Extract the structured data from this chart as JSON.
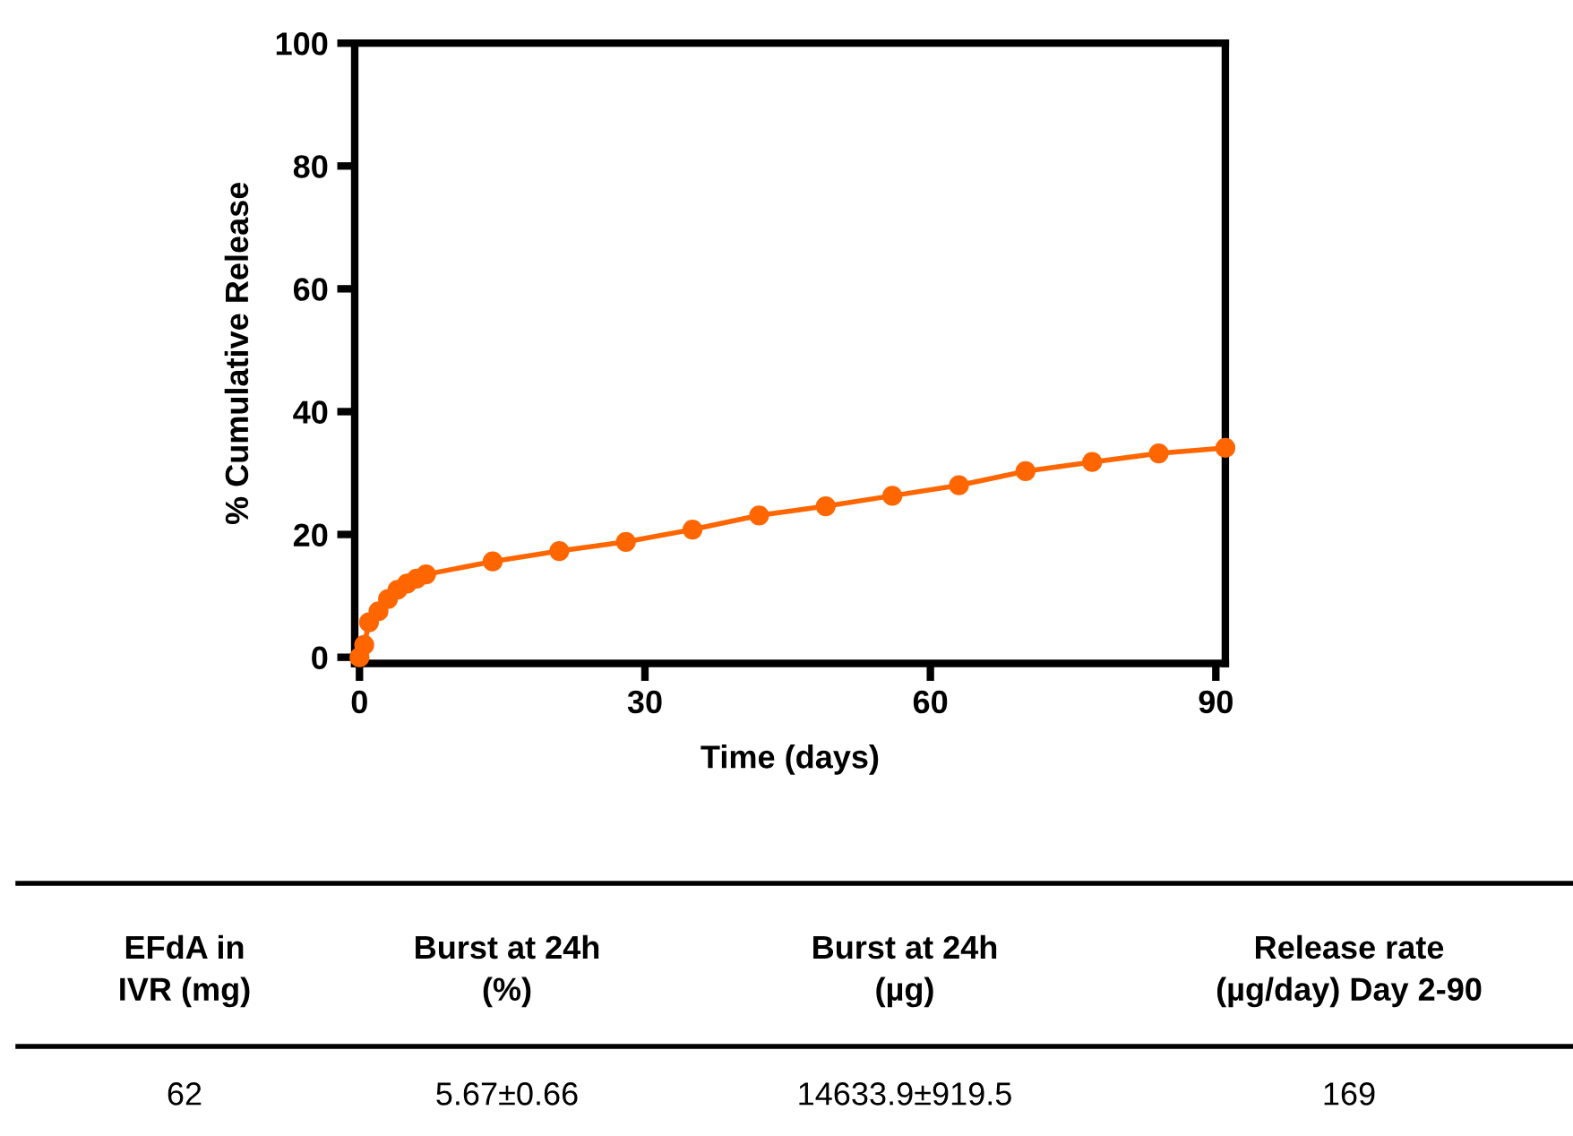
{
  "chart_data": {
    "type": "line",
    "xlabel": "Time (days)",
    "ylabel": "% Cumulative Release",
    "x": [
      0,
      0.5,
      1,
      2,
      3,
      4,
      5,
      6,
      7,
      14,
      21,
      28,
      35,
      42,
      49,
      56,
      63,
      70,
      77,
      84,
      91
    ],
    "series": [
      {
        "color": "#ff6600",
        "values": [
          0,
          2,
          5.7,
          7.5,
          9.5,
          11,
          12,
          12.8,
          13.5,
          15.6,
          17.3,
          18.8,
          20.8,
          23.1,
          24.6,
          26.3,
          28.0,
          30.3,
          31.8,
          33.2,
          34.1
        ]
      }
    ],
    "xlim": [
      -0.5,
      91
    ],
    "xticks": [
      0,
      30,
      60,
      90
    ],
    "ylim": [
      -1,
      100
    ],
    "yticks": [
      0,
      20,
      40,
      60,
      80,
      100
    ],
    "grid": false,
    "legend": false,
    "marker": "circle",
    "line_style": "solid",
    "annotations": [
      "EFdA in\nIVR (mg)",
      "Burst at 24h\n(%)",
      "Burst at 24h\n(µg)",
      "Release rate\n(µg/day) Day 2-90",
      "62",
      "5.67±0.66",
      "14633.9±919.5",
      "169"
    ]
  }
}
